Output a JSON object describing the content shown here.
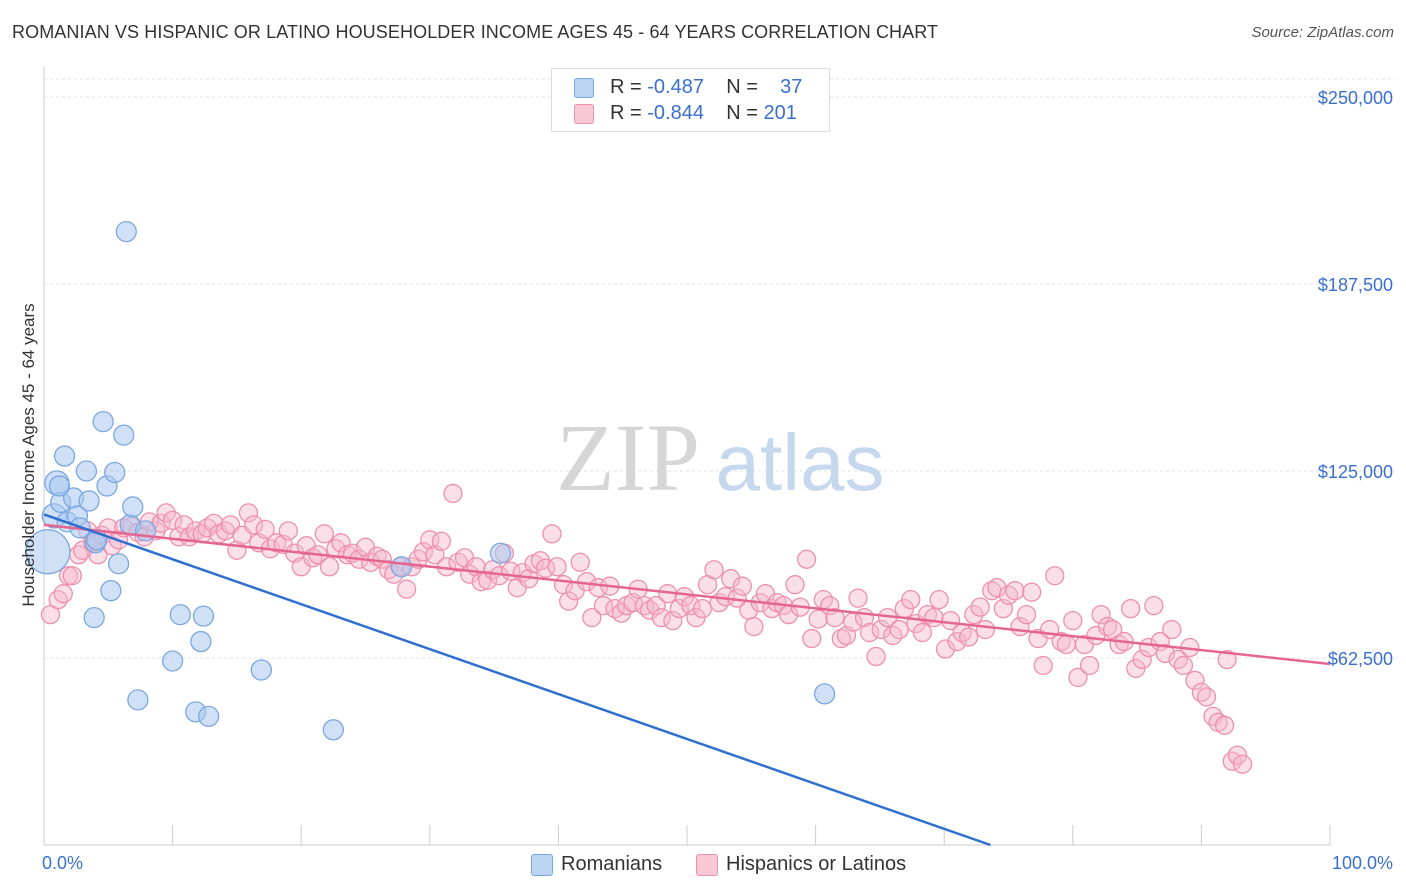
{
  "title": "ROMANIAN VS HISPANIC OR LATINO HOUSEHOLDER INCOME AGES 45 - 64 YEARS CORRELATION CHART",
  "source": "Source: ZipAtlas.com",
  "watermark": {
    "zip": "ZIP",
    "atlas": "atlas"
  },
  "legend": {
    "rows": [
      {
        "r_label": "R = ",
        "r_value": "-0.487",
        "n_label": "N = ",
        "n_value": "37"
      },
      {
        "r_label": "R = ",
        "r_value": "-0.844",
        "n_label": "N = ",
        "n_value": "201"
      }
    ]
  },
  "colors": {
    "blue_fill": "#a9c8f0",
    "blue_stroke": "#7aa7e0",
    "blue_line": "#2f6fd0",
    "pink_fill": "#f5b8cb",
    "pink_stroke": "#ee8fae",
    "pink_line": "#e4668f",
    "grid": "#e0e0e0",
    "axis_text": "#3a6fd0"
  },
  "chart_data": {
    "type": "scatter",
    "title": "ROMANIAN VS HISPANIC OR LATINO HOUSEHOLDER INCOME AGES 45 - 64 YEARS CORRELATION CHART",
    "xlabel": "",
    "ylabel": "Householder Income Ages 45 - 64 years",
    "xlim": [
      0,
      100
    ],
    "ylim": [
      0,
      262000
    ],
    "x_tick_labels": [
      "0.0%",
      "100.0%"
    ],
    "y_ticks": [
      62500,
      125000,
      187500,
      250000
    ],
    "y_tick_labels": [
      "$62,500",
      "$125,000",
      "$187,500",
      "$250,000"
    ],
    "grid": true,
    "legend_position": "bottom-center",
    "series": [
      {
        "name": "Romanians",
        "trend": {
          "x": [
            0,
            73.6
          ],
          "y": [
            110500,
            0
          ]
        },
        "points": [
          [
            0.3,
            98000,
            22
          ],
          [
            0.8,
            110000,
            12
          ],
          [
            1.0,
            121000,
            12
          ],
          [
            1.3,
            114500,
            10
          ],
          [
            1.6,
            130000,
            10
          ],
          [
            2.3,
            116000,
            10
          ],
          [
            1.8,
            108000,
            10
          ],
          [
            2.6,
            110000,
            10
          ],
          [
            2.8,
            106000,
            10
          ],
          [
            3.3,
            125000,
            10
          ],
          [
            3.5,
            115000,
            10
          ],
          [
            4.0,
            101000,
            10
          ],
          [
            4.6,
            141500,
            10
          ],
          [
            4.9,
            120000,
            10
          ],
          [
            5.2,
            85000,
            10
          ],
          [
            5.5,
            124500,
            10
          ],
          [
            5.8,
            94000,
            10
          ],
          [
            6.2,
            137000,
            10
          ],
          [
            6.4,
            205000,
            10
          ],
          [
            6.7,
            107000,
            10
          ],
          [
            6.9,
            113000,
            10
          ],
          [
            7.3,
            48500,
            10
          ],
          [
            7.9,
            105000,
            10
          ],
          [
            10.0,
            61500,
            10
          ],
          [
            10.6,
            77000,
            10
          ],
          [
            11.8,
            44500,
            10
          ],
          [
            12.2,
            68000,
            10
          ],
          [
            12.4,
            76500,
            10
          ],
          [
            12.8,
            43000,
            10
          ],
          [
            16.9,
            58500,
            10
          ],
          [
            22.5,
            38500,
            10
          ],
          [
            27.8,
            93000,
            10
          ],
          [
            35.5,
            97500,
            10
          ],
          [
            60.7,
            50500,
            10
          ],
          [
            3.9,
            76000,
            10
          ],
          [
            1.2,
            120000,
            10
          ],
          [
            4.1,
            102000,
            10
          ]
        ]
      },
      {
        "name": "Hispanics or Latinos",
        "trend": {
          "x": [
            0,
            100
          ],
          "y": [
            107000,
            60500
          ]
        },
        "points": [
          [
            0.5,
            77000
          ],
          [
            1.1,
            82000
          ],
          [
            1.5,
            84000
          ],
          [
            1.9,
            90000
          ],
          [
            2.2,
            90000
          ],
          [
            2.7,
            97000
          ],
          [
            3.0,
            98500
          ],
          [
            3.4,
            105000
          ],
          [
            3.8,
            101000
          ],
          [
            4.2,
            97000
          ],
          [
            4.5,
            103500
          ],
          [
            5.0,
            106000
          ],
          [
            5.3,
            100000
          ],
          [
            5.8,
            102000
          ],
          [
            6.2,
            106000
          ],
          [
            6.8,
            106500
          ],
          [
            7.3,
            104500
          ],
          [
            7.8,
            103000
          ],
          [
            8.2,
            108000
          ],
          [
            8.7,
            105000
          ],
          [
            9.1,
            107500
          ],
          [
            9.5,
            111000
          ],
          [
            10.0,
            108500
          ],
          [
            10.5,
            103000
          ],
          [
            10.9,
            107000
          ],
          [
            11.3,
            103000
          ],
          [
            11.8,
            105000
          ],
          [
            12.3,
            104000
          ],
          [
            12.7,
            106000
          ],
          [
            13.2,
            107500
          ],
          [
            13.6,
            104000
          ],
          [
            14.1,
            105000
          ],
          [
            14.5,
            107000
          ],
          [
            15.0,
            98500
          ],
          [
            15.4,
            103500
          ],
          [
            15.9,
            111000
          ],
          [
            16.3,
            107000
          ],
          [
            16.7,
            101000
          ],
          [
            17.2,
            105500
          ],
          [
            17.6,
            99000
          ],
          [
            18.1,
            101000
          ],
          [
            18.6,
            100500
          ],
          [
            19.0,
            105000
          ],
          [
            19.5,
            97500
          ],
          [
            20.0,
            93000
          ],
          [
            20.4,
            100000
          ],
          [
            20.9,
            96000
          ],
          [
            21.3,
            97000
          ],
          [
            21.8,
            104000
          ],
          [
            22.2,
            93000
          ],
          [
            22.7,
            99000
          ],
          [
            23.1,
            101000
          ],
          [
            23.6,
            97000
          ],
          [
            24.0,
            97500
          ],
          [
            24.5,
            95500
          ],
          [
            25.0,
            99500
          ],
          [
            25.4,
            94500
          ],
          [
            25.9,
            96500
          ],
          [
            26.3,
            95500
          ],
          [
            26.8,
            92000
          ],
          [
            27.2,
            90500
          ],
          [
            27.7,
            93000
          ],
          [
            28.2,
            85500
          ],
          [
            28.6,
            93000
          ],
          [
            29.1,
            95500
          ],
          [
            29.5,
            98000
          ],
          [
            30.0,
            102000
          ],
          [
            30.4,
            97000
          ],
          [
            30.9,
            101500
          ],
          [
            31.3,
            93000
          ],
          [
            31.8,
            117500
          ],
          [
            32.2,
            94500
          ],
          [
            32.7,
            96000
          ],
          [
            33.1,
            90500
          ],
          [
            33.6,
            93000
          ],
          [
            34.0,
            88000
          ],
          [
            34.5,
            88500
          ],
          [
            34.9,
            92000
          ],
          [
            35.4,
            90000
          ],
          [
            35.8,
            97500
          ],
          [
            36.3,
            91500
          ],
          [
            36.8,
            86000
          ],
          [
            37.2,
            91000
          ],
          [
            37.7,
            89000
          ],
          [
            38.1,
            94000
          ],
          [
            38.6,
            95000
          ],
          [
            39.0,
            92500
          ],
          [
            39.5,
            104000
          ],
          [
            39.9,
            93000
          ],
          [
            40.4,
            87000
          ],
          [
            40.8,
            81500
          ],
          [
            41.3,
            85000
          ],
          [
            41.7,
            94500
          ],
          [
            42.2,
            88000
          ],
          [
            42.6,
            76000
          ],
          [
            43.1,
            86000
          ],
          [
            43.5,
            80000
          ],
          [
            44.0,
            86500
          ],
          [
            44.4,
            79000
          ],
          [
            44.9,
            77500
          ],
          [
            45.3,
            80000
          ],
          [
            45.8,
            81000
          ],
          [
            46.2,
            85500
          ],
          [
            46.7,
            80000
          ],
          [
            47.1,
            78500
          ],
          [
            47.6,
            80000
          ],
          [
            48.0,
            76000
          ],
          [
            48.5,
            84000
          ],
          [
            48.9,
            75000
          ],
          [
            49.4,
            79000
          ],
          [
            49.8,
            83000
          ],
          [
            50.3,
            80000
          ],
          [
            50.7,
            76000
          ],
          [
            51.2,
            79000
          ],
          [
            51.6,
            87000
          ],
          [
            52.1,
            92000
          ],
          [
            52.5,
            81000
          ],
          [
            53.0,
            83000
          ],
          [
            53.4,
            89000
          ],
          [
            53.9,
            82500
          ],
          [
            54.3,
            86500
          ],
          [
            54.8,
            78500
          ],
          [
            55.2,
            73000
          ],
          [
            55.7,
            81000
          ],
          [
            56.1,
            84000
          ],
          [
            56.6,
            79000
          ],
          [
            57.0,
            81000
          ],
          [
            57.5,
            80000
          ],
          [
            57.9,
            77000
          ],
          [
            58.4,
            87000
          ],
          [
            58.8,
            79500
          ],
          [
            59.3,
            95500
          ],
          [
            59.7,
            69000
          ],
          [
            60.2,
            75500
          ],
          [
            60.6,
            82000
          ],
          [
            61.1,
            80000
          ],
          [
            61.5,
            76000
          ],
          [
            62.0,
            69000
          ],
          [
            62.4,
            70000
          ],
          [
            62.9,
            74500
          ],
          [
            63.3,
            82500
          ],
          [
            63.8,
            76000
          ],
          [
            64.2,
            71000
          ],
          [
            64.7,
            63000
          ],
          [
            65.1,
            72000
          ],
          [
            65.6,
            76000
          ],
          [
            66.0,
            70000
          ],
          [
            66.5,
            72000
          ],
          [
            66.9,
            79000
          ],
          [
            67.4,
            82000
          ],
          [
            67.8,
            74000
          ],
          [
            68.3,
            71000
          ],
          [
            68.7,
            77000
          ],
          [
            69.2,
            76000
          ],
          [
            69.6,
            82000
          ],
          [
            70.1,
            65500
          ],
          [
            70.5,
            75000
          ],
          [
            71.0,
            68000
          ],
          [
            71.4,
            71000
          ],
          [
            71.9,
            69500
          ],
          [
            72.3,
            77000
          ],
          [
            72.8,
            79500
          ],
          [
            73.2,
            72000
          ],
          [
            73.7,
            85000
          ],
          [
            74.1,
            86000
          ],
          [
            74.6,
            79000
          ],
          [
            75.0,
            83500
          ],
          [
            75.5,
            85000
          ],
          [
            75.9,
            73000
          ],
          [
            76.4,
            77000
          ],
          [
            76.8,
            84500
          ],
          [
            77.3,
            69000
          ],
          [
            77.7,
            60000
          ],
          [
            78.2,
            72000
          ],
          [
            78.6,
            90000
          ],
          [
            79.1,
            68000
          ],
          [
            79.5,
            67000
          ],
          [
            80.0,
            75000
          ],
          [
            80.4,
            56000
          ],
          [
            80.9,
            67000
          ],
          [
            81.3,
            60000
          ],
          [
            81.8,
            70000
          ],
          [
            82.2,
            77000
          ],
          [
            82.7,
            73000
          ],
          [
            83.1,
            72000
          ],
          [
            83.6,
            67000
          ],
          [
            84.0,
            68000
          ],
          [
            84.5,
            79000
          ],
          [
            84.9,
            59000
          ],
          [
            85.4,
            62000
          ],
          [
            85.9,
            66000
          ],
          [
            86.3,
            80000
          ],
          [
            86.8,
            68000
          ],
          [
            87.2,
            64000
          ],
          [
            87.7,
            72000
          ],
          [
            88.2,
            62000
          ],
          [
            88.6,
            60000
          ],
          [
            89.1,
            66000
          ],
          [
            89.5,
            55000
          ],
          [
            90.0,
            51000
          ],
          [
            90.4,
            49500
          ],
          [
            90.9,
            43000
          ],
          [
            91.3,
            41000
          ],
          [
            91.8,
            40000
          ],
          [
            92.4,
            28000
          ],
          [
            92.8,
            30000
          ],
          [
            93.2,
            27000
          ],
          [
            92.0,
            62000
          ]
        ]
      }
    ]
  },
  "axis_labels": {
    "y": "Householder Income Ages 45 - 64 years",
    "x_left": "0.0%",
    "x_right": "100.0%"
  },
  "bottom_legend": {
    "blue": "Romanians",
    "pink": "Hispanics or Latinos"
  }
}
